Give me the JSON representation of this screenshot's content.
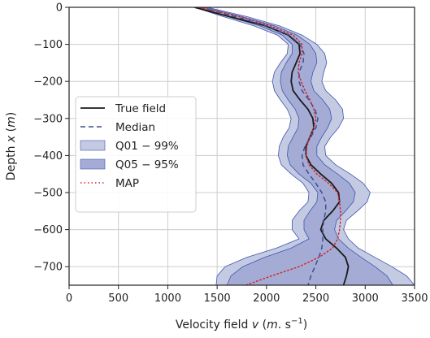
{
  "chart_data": {
    "type": "area",
    "orientation": "vertical-profile",
    "xlabel_main": "Velocity field ",
    "xlabel_var": "v",
    "xlabel_units_open": " (",
    "xlabel_units_m": "m",
    "xlabel_units_mid": ". s",
    "xlabel_units_exp": "−1",
    "xlabel_units_close": ")",
    "ylabel_main": "Depth ",
    "ylabel_var": "x",
    "ylabel_units_open": " (",
    "ylabel_units_m": "m",
    "ylabel_units_close": ")",
    "xlim": [
      0,
      3500
    ],
    "ylim": [
      -750,
      0
    ],
    "xticks": [
      0,
      500,
      1000,
      1500,
      2000,
      2500,
      3000,
      3500
    ],
    "xtick_labels": [
      "0",
      "500",
      "1000",
      "1500",
      "2000",
      "2500",
      "3000",
      "3500"
    ],
    "yticks": [
      0,
      -100,
      -200,
      -300,
      -400,
      -500,
      -600,
      -700
    ],
    "ytick_labels": [
      "0",
      "−100",
      "−200",
      "−300",
      "−400",
      "−500",
      "−600",
      "−700"
    ],
    "grid": true,
    "legend_position": "center-left",
    "depth": [
      0,
      -25,
      -50,
      -75,
      -100,
      -125,
      -150,
      -175,
      -200,
      -225,
      -250,
      -275,
      -300,
      -325,
      -350,
      -375,
      -400,
      -425,
      -450,
      -475,
      -500,
      -525,
      -550,
      -575,
      -600,
      -625,
      -650,
      -675,
      -700,
      -725,
      -750
    ],
    "series": [
      {
        "name": "True field",
        "style": "line",
        "color": "#1a1a1a",
        "dash": "none",
        "values": [
          1270,
          1620,
          1990,
          2220,
          2330,
          2340,
          2300,
          2260,
          2250,
          2270,
          2340,
          2420,
          2470,
          2480,
          2440,
          2400,
          2400,
          2450,
          2550,
          2660,
          2730,
          2740,
          2670,
          2580,
          2550,
          2600,
          2710,
          2800,
          2830,
          2810,
          2780
        ]
      },
      {
        "name": "Median",
        "style": "line",
        "color": "#3d4f8c",
        "dash": "6,4",
        "values": [
          1330,
          1680,
          2000,
          2230,
          2340,
          2380,
          2370,
          2330,
          2330,
          2360,
          2430,
          2490,
          2520,
          2500,
          2450,
          2390,
          2360,
          2370,
          2430,
          2500,
          2560,
          2600,
          2600,
          2580,
          2570,
          2570,
          2560,
          2530,
          2490,
          2450,
          2420
        ]
      },
      {
        "name": "MAP",
        "style": "line",
        "color": "#d62728",
        "dash": "1.5,3",
        "values": [
          1320,
          1720,
          2040,
          2270,
          2360,
          2360,
          2330,
          2320,
          2350,
          2390,
          2440,
          2480,
          2500,
          2480,
          2440,
          2410,
          2400,
          2430,
          2510,
          2630,
          2720,
          2740,
          2750,
          2750,
          2740,
          2720,
          2670,
          2530,
          2330,
          2050,
          1790
        ]
      }
    ],
    "bands": [
      {
        "name": "Q01 − 99%",
        "color": "#c5cae3",
        "edge": "#3b56b0",
        "lower": [
          1270,
          1560,
          1870,
          2110,
          2220,
          2210,
          2140,
          2080,
          2060,
          2080,
          2140,
          2210,
          2250,
          2230,
          2170,
          2130,
          2120,
          2150,
          2250,
          2370,
          2430,
          2420,
          2330,
          2260,
          2260,
          2330,
          2100,
          1800,
          1580,
          1500,
          1490
        ],
        "upper": [
          1400,
          1800,
          2130,
          2360,
          2510,
          2590,
          2610,
          2580,
          2560,
          2600,
          2700,
          2770,
          2780,
          2730,
          2650,
          2590,
          2600,
          2700,
          2850,
          2980,
          3050,
          3020,
          2920,
          2810,
          2780,
          2830,
          2930,
          3100,
          3270,
          3420,
          3500
        ]
      },
      {
        "name": "Q05 − 95%",
        "color": "#a4acd6",
        "edge": "#3b56b0",
        "lower": [
          1290,
          1610,
          1930,
          2160,
          2260,
          2260,
          2200,
          2150,
          2140,
          2160,
          2220,
          2290,
          2330,
          2320,
          2270,
          2220,
          2210,
          2240,
          2330,
          2450,
          2520,
          2510,
          2440,
          2380,
          2380,
          2430,
          2250,
          1980,
          1760,
          1640,
          1600
        ],
        "upper": [
          1370,
          1750,
          2080,
          2310,
          2440,
          2500,
          2510,
          2470,
          2450,
          2480,
          2570,
          2640,
          2660,
          2620,
          2560,
          2510,
          2510,
          2590,
          2720,
          2840,
          2900,
          2880,
          2800,
          2710,
          2690,
          2730,
          2830,
          2960,
          3100,
          3220,
          3280
        ]
      }
    ],
    "legend": [
      {
        "label": "True field",
        "kind": "line",
        "color": "#1a1a1a",
        "dash": "none"
      },
      {
        "label": "Median",
        "kind": "line",
        "color": "#3d4f8c",
        "dash": "6,4"
      },
      {
        "label": "Q01 − 99%",
        "kind": "patch",
        "color": "#c5cae3"
      },
      {
        "label": "Q05 − 95%",
        "kind": "patch",
        "color": "#a4acd6"
      },
      {
        "label": "MAP",
        "kind": "line",
        "color": "#d62728",
        "dash": "1.5,3"
      }
    ]
  }
}
